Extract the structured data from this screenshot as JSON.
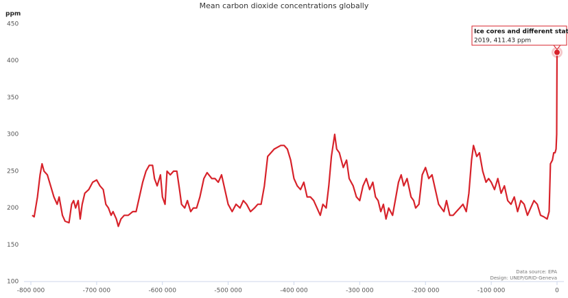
{
  "chart_data": {
    "type": "line",
    "title": "Mean carbon dioxide concentrations globally",
    "y_label": "ppm",
    "source": "Data source: EPA",
    "credit": "Design: UNEP/GRID-Geneva",
    "tooltip": "2019, 411.43 ppm",
    "grid": false,
    "xlim": [
      -800000,
      0
    ],
    "ylim": [
      100,
      450
    ],
    "yticks": [
      100,
      150,
      200,
      250,
      300,
      350,
      400,
      450
    ],
    "xticks": [
      {
        "value": -800000,
        "label": "-800 000"
      },
      {
        "value": -700000,
        "label": "-700 000"
      },
      {
        "value": -600000,
        "label": "-600 000"
      },
      {
        "value": -500000,
        "label": "-500 000"
      },
      {
        "value": -400000,
        "label": "-400 000"
      },
      {
        "value": -300000,
        "label": "-300 000"
      },
      {
        "value": -200000,
        "label": "-200 000"
      },
      {
        "value": -100000,
        "label": "-100 000"
      },
      0
    ],
    "x": [
      -798000,
      -795000,
      -790000,
      -786000,
      -783000,
      -780000,
      -775000,
      -770000,
      -765000,
      -760000,
      -757000,
      -752000,
      -748000,
      -742000,
      -738000,
      -735000,
      -732000,
      -728000,
      -725000,
      -722000,
      -718000,
      -712000,
      -706000,
      -700000,
      -695000,
      -690000,
      -686000,
      -682000,
      -678000,
      -675000,
      -670000,
      -667000,
      -663000,
      -658000,
      -652000,
      -645000,
      -640000,
      -635000,
      -630000,
      -625000,
      -620000,
      -615000,
      -612000,
      -608000,
      -603000,
      -600000,
      -596000,
      -593000,
      -588000,
      -583000,
      -578000,
      -574000,
      -571000,
      -566000,
      -562000,
      -557000,
      -553000,
      -548000,
      -543000,
      -537000,
      -532000,
      -525000,
      -520000,
      -515000,
      -510000,
      -505000,
      -500000,
      -494000,
      -488000,
      -482000,
      -477000,
      -472000,
      -466000,
      -460000,
      -455000,
      -450000,
      -445000,
      -440000,
      -430000,
      -420000,
      -415000,
      -410000,
      -405000,
      -400000,
      -395000,
      -390000,
      -385000,
      -380000,
      -375000,
      -370000,
      -365000,
      -360000,
      -356000,
      -351000,
      -347000,
      -343000,
      -338000,
      -335000,
      -331000,
      -325000,
      -320000,
      -316000,
      -310000,
      -305000,
      -300000,
      -295000,
      -290000,
      -285000,
      -280000,
      -276000,
      -272000,
      -268000,
      -264000,
      -260000,
      -256000,
      -250000,
      -245000,
      -241000,
      -237000,
      -233000,
      -228000,
      -222000,
      -218000,
      -215000,
      -210000,
      -205000,
      -200000,
      -195000,
      -190000,
      -185000,
      -180000,
      -176000,
      -172000,
      -168000,
      -163000,
      -158000,
      -153000,
      -148000,
      -143000,
      -138000,
      -134000,
      -130000,
      -127000,
      -122000,
      -118000,
      -113000,
      -108000,
      -104000,
      -100000,
      -95000,
      -90000,
      -85000,
      -80000,
      -75000,
      -70000,
      -65000,
      -60000,
      -55000,
      -50000,
      -45000,
      -40000,
      -35000,
      -30000,
      -25000,
      -20000,
      -15000,
      -12000,
      -10000,
      -7000,
      -5000,
      -3000,
      -1500,
      -500,
      0
    ],
    "series": [
      {
        "name": "Ice cores and different stations",
        "color": "#d7222a",
        "values": [
          190,
          188,
          215,
          245,
          260,
          250,
          245,
          230,
          215,
          205,
          215,
          190,
          182,
          180,
          205,
          210,
          200,
          210,
          185,
          205,
          220,
          225,
          235,
          238,
          230,
          225,
          205,
          200,
          190,
          195,
          185,
          175,
          185,
          190,
          190,
          195,
          195,
          215,
          235,
          250,
          258,
          258,
          240,
          230,
          245,
          215,
          205,
          250,
          245,
          250,
          250,
          225,
          205,
          200,
          210,
          195,
          200,
          200,
          215,
          240,
          248,
          240,
          240,
          235,
          245,
          225,
          205,
          195,
          205,
          200,
          210,
          205,
          195,
          200,
          205,
          205,
          230,
          270,
          280,
          285,
          285,
          280,
          265,
          240,
          230,
          225,
          235,
          215,
          215,
          210,
          200,
          190,
          205,
          200,
          230,
          270,
          300,
          280,
          275,
          255,
          265,
          240,
          230,
          215,
          210,
          230,
          240,
          225,
          235,
          215,
          210,
          195,
          205,
          185,
          200,
          190,
          215,
          235,
          245,
          230,
          240,
          215,
          210,
          200,
          205,
          245,
          255,
          240,
          245,
          225,
          205,
          200,
          195,
          210,
          190,
          190,
          195,
          200,
          205,
          195,
          220,
          265,
          285,
          270,
          275,
          250,
          235,
          240,
          235,
          225,
          240,
          220,
          230,
          210,
          205,
          215,
          195,
          210,
          205,
          190,
          200,
          210,
          205,
          190,
          188,
          185,
          195,
          260,
          265,
          275,
          275,
          280,
          300,
          411.43
        ]
      }
    ]
  }
}
